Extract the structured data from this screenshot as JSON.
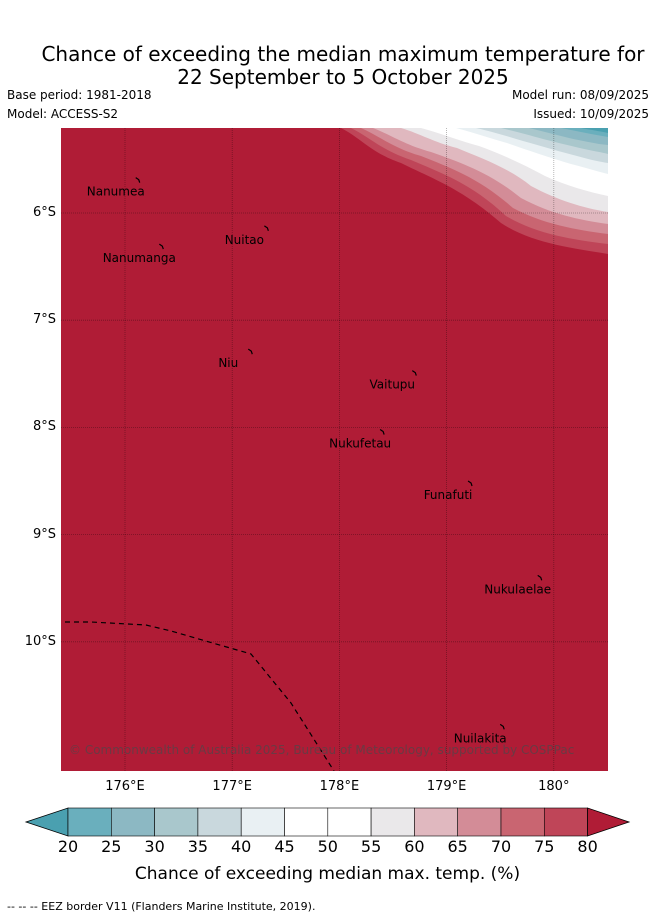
{
  "title_line1": "Chance of exceeding the median maximum temperature for",
  "title_line2": "22 September to 5 October 2025",
  "base_period": "Base period: 1981-2018",
  "model": "Model: ACCESS-S2",
  "model_run": "Model run: 08/09/2025",
  "issued": "Issued: 10/09/2025",
  "map": {
    "lon_ticks": [
      {
        "value": 176,
        "label": "176°E"
      },
      {
        "value": 177,
        "label": "177°E"
      },
      {
        "value": 178,
        "label": "178°E"
      },
      {
        "value": 179,
        "label": "179°E"
      },
      {
        "value": 180,
        "label": "180°"
      }
    ],
    "lat_ticks": [
      {
        "value": -6,
        "label": "6°S"
      },
      {
        "value": -7,
        "label": "7°S"
      },
      {
        "value": -8,
        "label": "8°S"
      },
      {
        "value": -9,
        "label": "9°S"
      },
      {
        "value": -10,
        "label": "10°S"
      }
    ],
    "islands": [
      {
        "name": "Nanumea",
        "lon": 176.1,
        "lat": -5.67
      },
      {
        "name": "Nuitao",
        "lon": 177.3,
        "lat": -6.12
      },
      {
        "name": "Nanumanga",
        "lon": 176.32,
        "lat": -6.29
      },
      {
        "name": "Niu",
        "lon": 177.15,
        "lat": -7.27
      },
      {
        "name": "Vaitupu",
        "lon": 178.68,
        "lat": -7.47
      },
      {
        "name": "Nukufetau",
        "lon": 178.38,
        "lat": -8.02
      },
      {
        "name": "Funafuti",
        "lon": 179.2,
        "lat": -8.5
      },
      {
        "name": "Nukulaelae",
        "lon": 179.85,
        "lat": -9.38
      },
      {
        "name": "Nuilakita",
        "lon": 179.5,
        "lat": -10.77
      }
    ],
    "attribution": "© Commonwealth of Australia 2025, Bureau of Meteorology, supported by COSPPac",
    "background_color": "#b01c36"
  },
  "colorbar": {
    "ticks": [
      "20",
      "25",
      "30",
      "35",
      "40",
      "45",
      "50",
      "55",
      "60",
      "65",
      "70",
      "75",
      "80"
    ],
    "colors": [
      "#6aafbd",
      "#8cb8c3",
      "#a9c7cc",
      "#c9d8dd",
      "#e9f0f3",
      "#ffffff",
      "#ffffff",
      "#eae8ea",
      "#e0b8bf",
      "#d38c97",
      "#c96571",
      "#bf4558"
    ],
    "low_extend_color": "#4aa0b0",
    "high_extend_color": "#b01c36",
    "label": "Chance of exceeding median max. temp. (%)"
  },
  "footnote": "--  --  -- EEZ border V11 (Flanders Marine Institute, 2019)."
}
